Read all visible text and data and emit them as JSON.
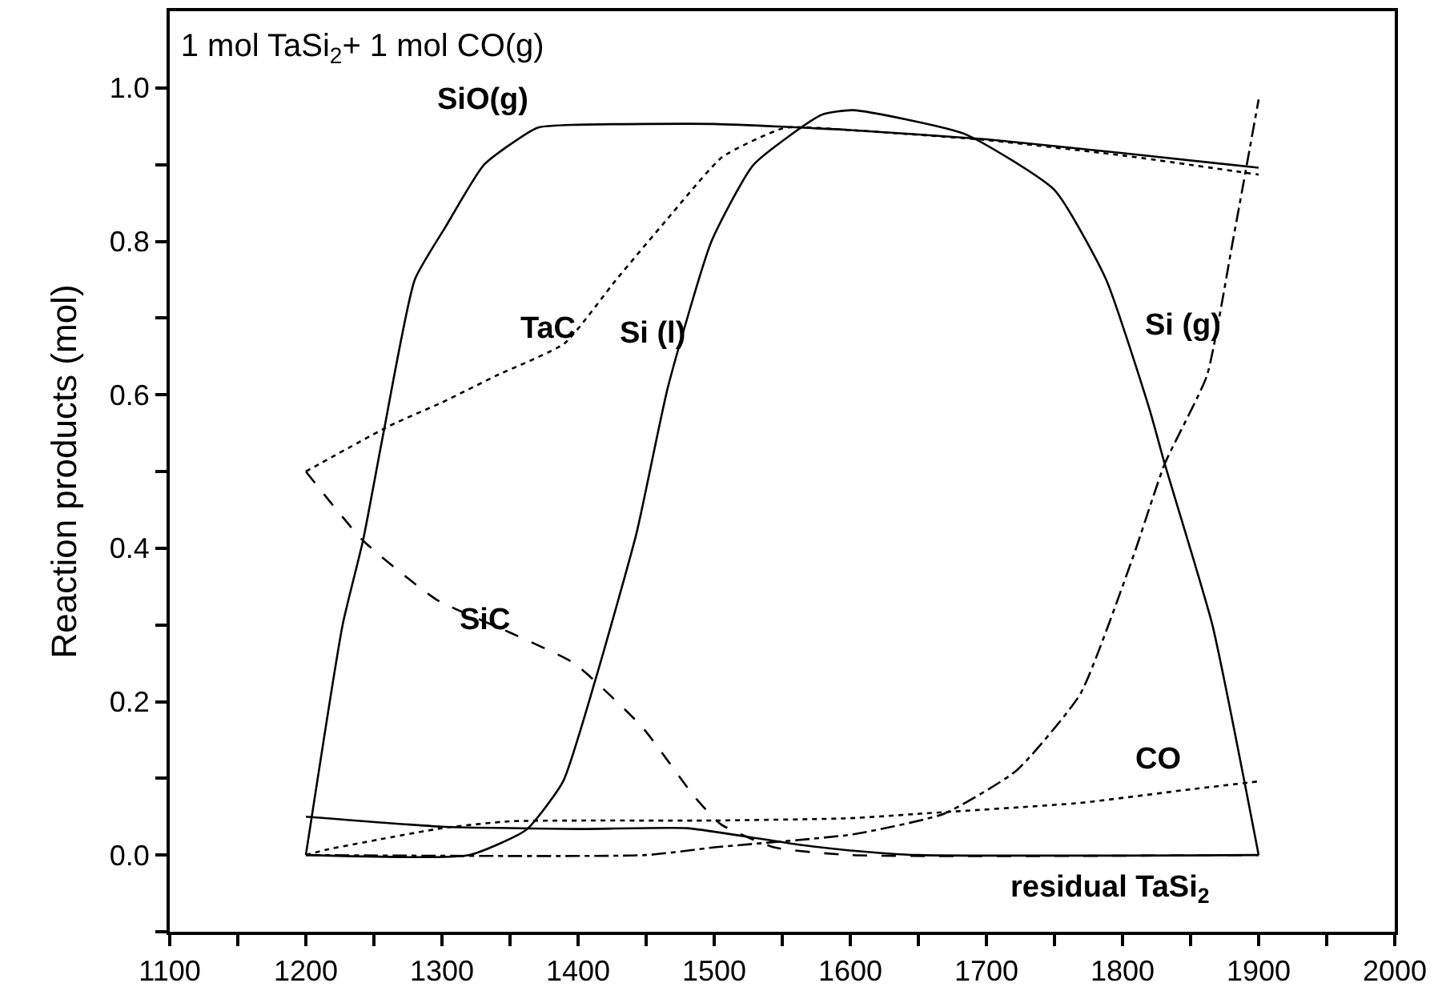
{
  "chart_data": {
    "type": "line",
    "title": "1 mol TaSi$_{2}$+ 1 mol CO(g)",
    "ylabel": "Reaction products (mol)",
    "xlim": [
      1100,
      2000
    ],
    "ylim": [
      -0.1,
      1.1
    ],
    "xticks": [
      1100,
      {
        "value": 1150,
        "label": null
      },
      1200,
      {
        "value": 1250,
        "label": null
      },
      1300,
      {
        "value": 1350,
        "label": null
      },
      1400,
      {
        "value": 1450,
        "label": null
      },
      1500,
      {
        "value": 1550,
        "label": null
      },
      1600,
      {
        "value": 1650,
        "label": null
      },
      1700,
      {
        "value": 1750,
        "label": null
      },
      1800,
      {
        "value": 1850,
        "label": null
      },
      1900,
      {
        "value": 1950,
        "label": null
      },
      2000
    ],
    "yticks": [
      {
        "value": -0.1,
        "label": null
      },
      {
        "value": 0,
        "label": "0.0"
      },
      {
        "value": 0.1,
        "label": null
      },
      0.2,
      {
        "value": 0.3,
        "label": null
      },
      0.4,
      {
        "value": 0.5,
        "label": null
      },
      0.6,
      {
        "value": 0.7,
        "label": null
      },
      0.8,
      {
        "value": 0.9,
        "label": null
      },
      {
        "value": 1,
        "label": "1.0"
      }
    ],
    "grid": false,
    "legend": false,
    "marker": "none",
    "series": [
      {
        "name": "SiO(g)",
        "color": "#000000",
        "line_style": "solid",
        "x": [
          1200,
          1227,
          1242,
          1257,
          1280,
          1303,
          1331,
          1370,
          1400,
          1500,
          1600,
          1700,
          1800,
          1900
        ],
        "values": [
          0,
          0.3,
          0.41,
          0.55,
          0.75,
          0.82,
          0.9,
          0.948,
          0.952,
          0.953,
          0.945,
          0.933,
          0.915,
          0.896
        ]
      },
      {
        "name": "TaC",
        "color": "#000000",
        "line_style": "dotted",
        "x": [
          1200,
          1262,
          1300,
          1340,
          1390,
          1428,
          1466,
          1506,
          1552,
          1600,
          1700,
          1800,
          1900
        ],
        "values": [
          0.5,
          0.56,
          0.59,
          0.625,
          0.667,
          0.75,
          0.83,
          0.91,
          0.948,
          0.945,
          0.932,
          0.912,
          0.887
        ]
      },
      {
        "name": "Si (l)",
        "color": "#000000",
        "line_style": "solid",
        "x": [
          1200,
          1320,
          1362,
          1389,
          1413,
          1443,
          1466,
          1498,
          1529,
          1579,
          1602,
          1684,
          1750,
          1788,
          1820,
          1831,
          1866,
          1900
        ],
        "values": [
          0,
          0,
          0.033,
          0.096,
          0.23,
          0.42,
          0.61,
          0.8,
          0.9,
          0.965,
          0.971,
          0.94,
          0.867,
          0.75,
          0.58,
          0.51,
          0.3,
          0
        ]
      },
      {
        "name": "Si (g)",
        "color": "#000000",
        "line_style": "dashdot",
        "x": [
          1200,
          1450,
          1500,
          1602,
          1669,
          1722,
          1769,
          1808,
          1831,
          1862,
          1881,
          1900
        ],
        "values": [
          0,
          0,
          0.01,
          0.027,
          0.054,
          0.11,
          0.21,
          0.39,
          0.51,
          0.625,
          0.8,
          0.985
        ]
      },
      {
        "name": "SiC",
        "color": "#000000",
        "line_style": "dashed",
        "x": [
          1200,
          1242,
          1296,
          1350,
          1397,
          1447,
          1486,
          1505,
          1544,
          1600,
          1900
        ],
        "values": [
          0.5,
          0.41,
          0.333,
          0.29,
          0.25,
          0.167,
          0.075,
          0.04,
          0.01,
          0,
          0
        ]
      },
      {
        "name": "CO",
        "color": "#000000",
        "line_style": "dotted",
        "x": [
          1200,
          1215,
          1253,
          1300,
          1350,
          1500,
          1600,
          1652,
          1769,
          1847,
          1900
        ],
        "values": [
          0,
          0.007,
          0.02,
          0.035,
          0.044,
          0.045,
          0.048,
          0.054,
          0.068,
          0.085,
          0.096
        ]
      },
      {
        "name": "residual TaSi$_{2}$",
        "color": "#000000",
        "line_style": "solid",
        "x": [
          1200,
          1300,
          1400,
          1480,
          1520,
          1560,
          1600,
          1650,
          1900
        ],
        "values": [
          0.05,
          0.037,
          0.034,
          0.035,
          0.025,
          0.014,
          0.006,
          0,
          0
        ]
      }
    ]
  }
}
